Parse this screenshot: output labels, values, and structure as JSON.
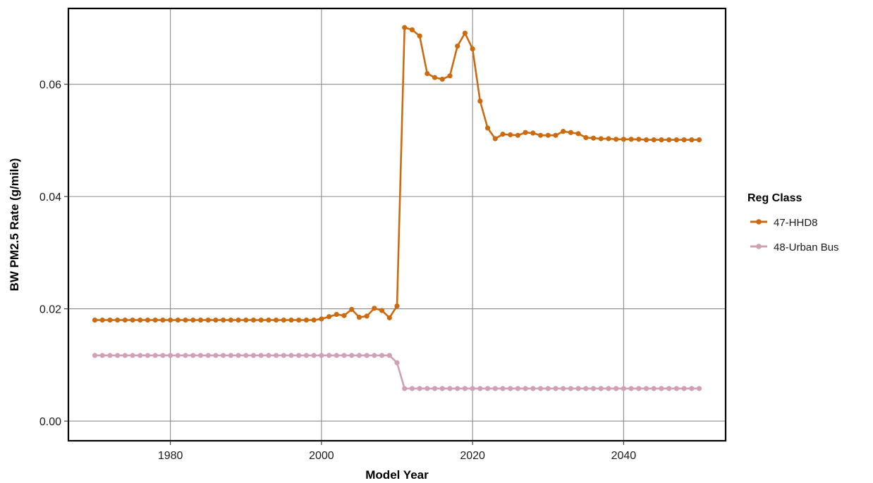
{
  "chart_data": {
    "type": "line",
    "xlabel": "Model Year",
    "ylabel": "BW PM2.5 Rate (g/mile)",
    "xlim": [
      1966.5,
      2053.5
    ],
    "ylim": [
      -0.0035,
      0.0735
    ],
    "xticks": [
      1980,
      2000,
      2020,
      2040
    ],
    "xtick_labels": [
      "1980",
      "2000",
      "2020",
      "2040"
    ],
    "yticks": [
      0,
      0.02,
      0.04,
      0.06
    ],
    "ytick_labels": [
      "0.00",
      "0.02",
      "0.04",
      "0.06"
    ],
    "grid": true,
    "legend": {
      "title": "Reg Class",
      "position": "right"
    },
    "x": [
      1970,
      1971,
      1972,
      1973,
      1974,
      1975,
      1976,
      1977,
      1978,
      1979,
      1980,
      1981,
      1982,
      1983,
      1984,
      1985,
      1986,
      1987,
      1988,
      1989,
      1990,
      1991,
      1992,
      1993,
      1994,
      1995,
      1996,
      1997,
      1998,
      1999,
      2000,
      2001,
      2002,
      2003,
      2004,
      2005,
      2006,
      2007,
      2008,
      2009,
      2010,
      2011,
      2012,
      2013,
      2014,
      2015,
      2016,
      2017,
      2018,
      2019,
      2020,
      2021,
      2022,
      2023,
      2024,
      2025,
      2026,
      2027,
      2028,
      2029,
      2030,
      2031,
      2032,
      2033,
      2034,
      2035,
      2036,
      2037,
      2038,
      2039,
      2040,
      2041,
      2042,
      2043,
      2044,
      2045,
      2046,
      2047,
      2048,
      2049,
      2050
    ],
    "series": [
      {
        "name": "47-HHD8",
        "color": "#cc6a10",
        "values": [
          0.018,
          0.018,
          0.018,
          0.018,
          0.018,
          0.018,
          0.018,
          0.018,
          0.018,
          0.018,
          0.018,
          0.018,
          0.018,
          0.018,
          0.018,
          0.018,
          0.018,
          0.018,
          0.018,
          0.018,
          0.018,
          0.018,
          0.018,
          0.018,
          0.018,
          0.018,
          0.018,
          0.018,
          0.018,
          0.018,
          0.0182,
          0.0186,
          0.019,
          0.0188,
          0.0199,
          0.0185,
          0.0187,
          0.0201,
          0.0197,
          0.0184,
          0.0205,
          0.0701,
          0.0697,
          0.0686,
          0.0619,
          0.0612,
          0.0609,
          0.0615,
          0.0668,
          0.0691,
          0.0663,
          0.057,
          0.0522,
          0.0503,
          0.0511,
          0.051,
          0.0509,
          0.0514,
          0.0513,
          0.0509,
          0.0509,
          0.0509,
          0.0516,
          0.0514,
          0.0512,
          0.0505,
          0.0504,
          0.0503,
          0.0503,
          0.0502,
          0.0502,
          0.0502,
          0.0502,
          0.0501,
          0.0501,
          0.0501,
          0.0501,
          0.0501,
          0.0501,
          0.0501,
          0.0501
        ]
      },
      {
        "name": "48-Urban Bus",
        "color": "#cfa0b6",
        "values": [
          0.0117,
          0.0117,
          0.0117,
          0.0117,
          0.0117,
          0.0117,
          0.0117,
          0.0117,
          0.0117,
          0.0117,
          0.0117,
          0.0117,
          0.0117,
          0.0117,
          0.0117,
          0.0117,
          0.0117,
          0.0117,
          0.0117,
          0.0117,
          0.0117,
          0.0117,
          0.0117,
          0.0117,
          0.0117,
          0.0117,
          0.0117,
          0.0117,
          0.0117,
          0.0117,
          0.0117,
          0.0117,
          0.0117,
          0.0117,
          0.0117,
          0.0117,
          0.0117,
          0.0117,
          0.0117,
          0.0117,
          0.0104,
          0.0058,
          0.0058,
          0.0058,
          0.0058,
          0.0058,
          0.0058,
          0.0058,
          0.0058,
          0.0058,
          0.0058,
          0.0058,
          0.0058,
          0.0058,
          0.0058,
          0.0058,
          0.0058,
          0.0058,
          0.0058,
          0.0058,
          0.0058,
          0.0058,
          0.0058,
          0.0058,
          0.0058,
          0.0058,
          0.0058,
          0.0058,
          0.0058,
          0.0058,
          0.0058,
          0.0058,
          0.0058,
          0.0058,
          0.0058,
          0.0058,
          0.0058,
          0.0058,
          0.0058,
          0.0058,
          0.0058
        ]
      }
    ]
  }
}
